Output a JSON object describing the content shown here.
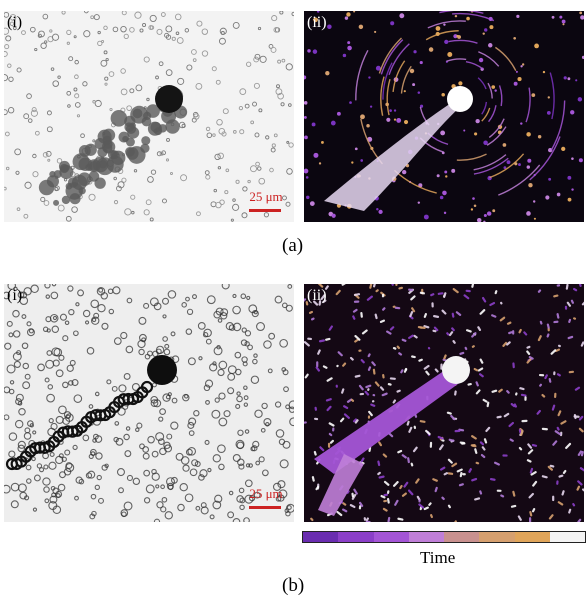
{
  "figure": {
    "row_a": {
      "caption": "(a)",
      "left": {
        "label": "(i)",
        "scale_bar": "25 μm"
      },
      "right": {
        "label": "(ii)"
      }
    },
    "row_b": {
      "caption": "(b)",
      "left": {
        "label": "(i)",
        "scale_bar": "25 μm"
      },
      "right": {
        "label": "(ii)"
      }
    },
    "colorbar": {
      "label": "Time",
      "colors": [
        "#6a2db0",
        "#8b3fc8",
        "#a455d6",
        "#c07fd8",
        "#c9918f",
        "#d6a06f",
        "#e0a55a",
        "#f4f4f4"
      ]
    }
  }
}
